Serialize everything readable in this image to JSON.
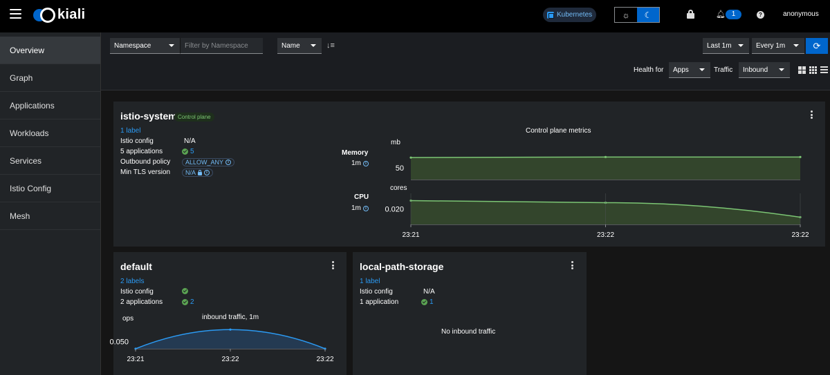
{
  "masthead": {
    "brand": "kiali",
    "cluster_badge": "Kubernetes",
    "notifications_count": "1",
    "user": "anonymous"
  },
  "sidebar": {
    "items": [
      {
        "label": "Overview",
        "active": true
      },
      {
        "label": "Graph"
      },
      {
        "label": "Applications"
      },
      {
        "label": "Workloads"
      },
      {
        "label": "Services"
      },
      {
        "label": "Istio Config"
      },
      {
        "label": "Mesh"
      }
    ]
  },
  "toolbar": {
    "filter_type": "Namespace",
    "filter_placeholder": "Filter by Namespace",
    "sort_by": "Name",
    "time_range": "Last 1m",
    "refresh_interval": "Every 1m",
    "health_for_label": "Health for",
    "health_for_value": "Apps",
    "traffic_label": "Traffic",
    "traffic_value": "Inbound"
  },
  "cards": {
    "istio_system": {
      "title": "istio-system",
      "badge": "Control plane",
      "labels_link": "1 label",
      "istio_config_label": "Istio config",
      "istio_config_value": "N/A",
      "applications_label": "5 applications",
      "applications_count": "5",
      "outbound_policy_label": "Outbound policy",
      "outbound_policy_value": "ALLOW_ANY",
      "min_tls_label": "Min TLS version",
      "min_tls_value": "N/A",
      "metrics_title": "Control plane metrics",
      "memory_label": "Memory",
      "memory_interval": "1m",
      "memory_unit": "mb",
      "cpu_label": "CPU",
      "cpu_interval": "1m",
      "cpu_unit": "cores"
    },
    "default": {
      "title": "default",
      "labels_link": "2 labels",
      "istio_config_label": "Istio config",
      "applications_label": "2 applications",
      "applications_count": "2",
      "chart_title": "inbound traffic, 1m",
      "chart_unit": "ops"
    },
    "local_path_storage": {
      "title": "local-path-storage",
      "labels_link": "1 label",
      "istio_config_label": "Istio config",
      "istio_config_value": "N/A",
      "applications_label": "1 application",
      "applications_count": "1",
      "no_traffic": "No inbound traffic"
    }
  },
  "colors": {
    "accent": "#0066cc",
    "link": "#2b9af3",
    "healthy": "#5ba352",
    "chart_green": "#7cc674",
    "chart_blue": "#2b9af3"
  },
  "chart_data": [
    {
      "type": "area",
      "title": "Control plane metrics",
      "ylabel": "mb",
      "series": [
        {
          "name": "Memory",
          "values": [
            67,
            68,
            68
          ]
        }
      ],
      "x": [
        "23:21",
        "23:22",
        "23:22"
      ],
      "ytick": [
        50
      ],
      "ylim": [
        30,
        80
      ]
    },
    {
      "type": "area",
      "ylabel": "cores",
      "series": [
        {
          "name": "CPU",
          "values": [
            0.028,
            0.026,
            0.012
          ]
        }
      ],
      "x": [
        "23:21",
        "23:22",
        "23:22"
      ],
      "ytick": [
        0.02
      ],
      "ylim": [
        0.005,
        0.035
      ],
      "xtick_labels": [
        "23:21",
        "23:22",
        "23:22"
      ]
    },
    {
      "type": "area",
      "title": "inbound traffic, 1m",
      "ylabel": "ops",
      "series": [
        {
          "values": [
            0.045,
            0.058,
            0.045
          ]
        }
      ],
      "x": [
        "23:21",
        "23:22",
        "23:22"
      ],
      "ytick": [
        0.05
      ],
      "ylim": [
        0.045,
        0.06
      ],
      "xtick_labels": [
        "23:21",
        "23:22",
        "23:22"
      ]
    }
  ]
}
